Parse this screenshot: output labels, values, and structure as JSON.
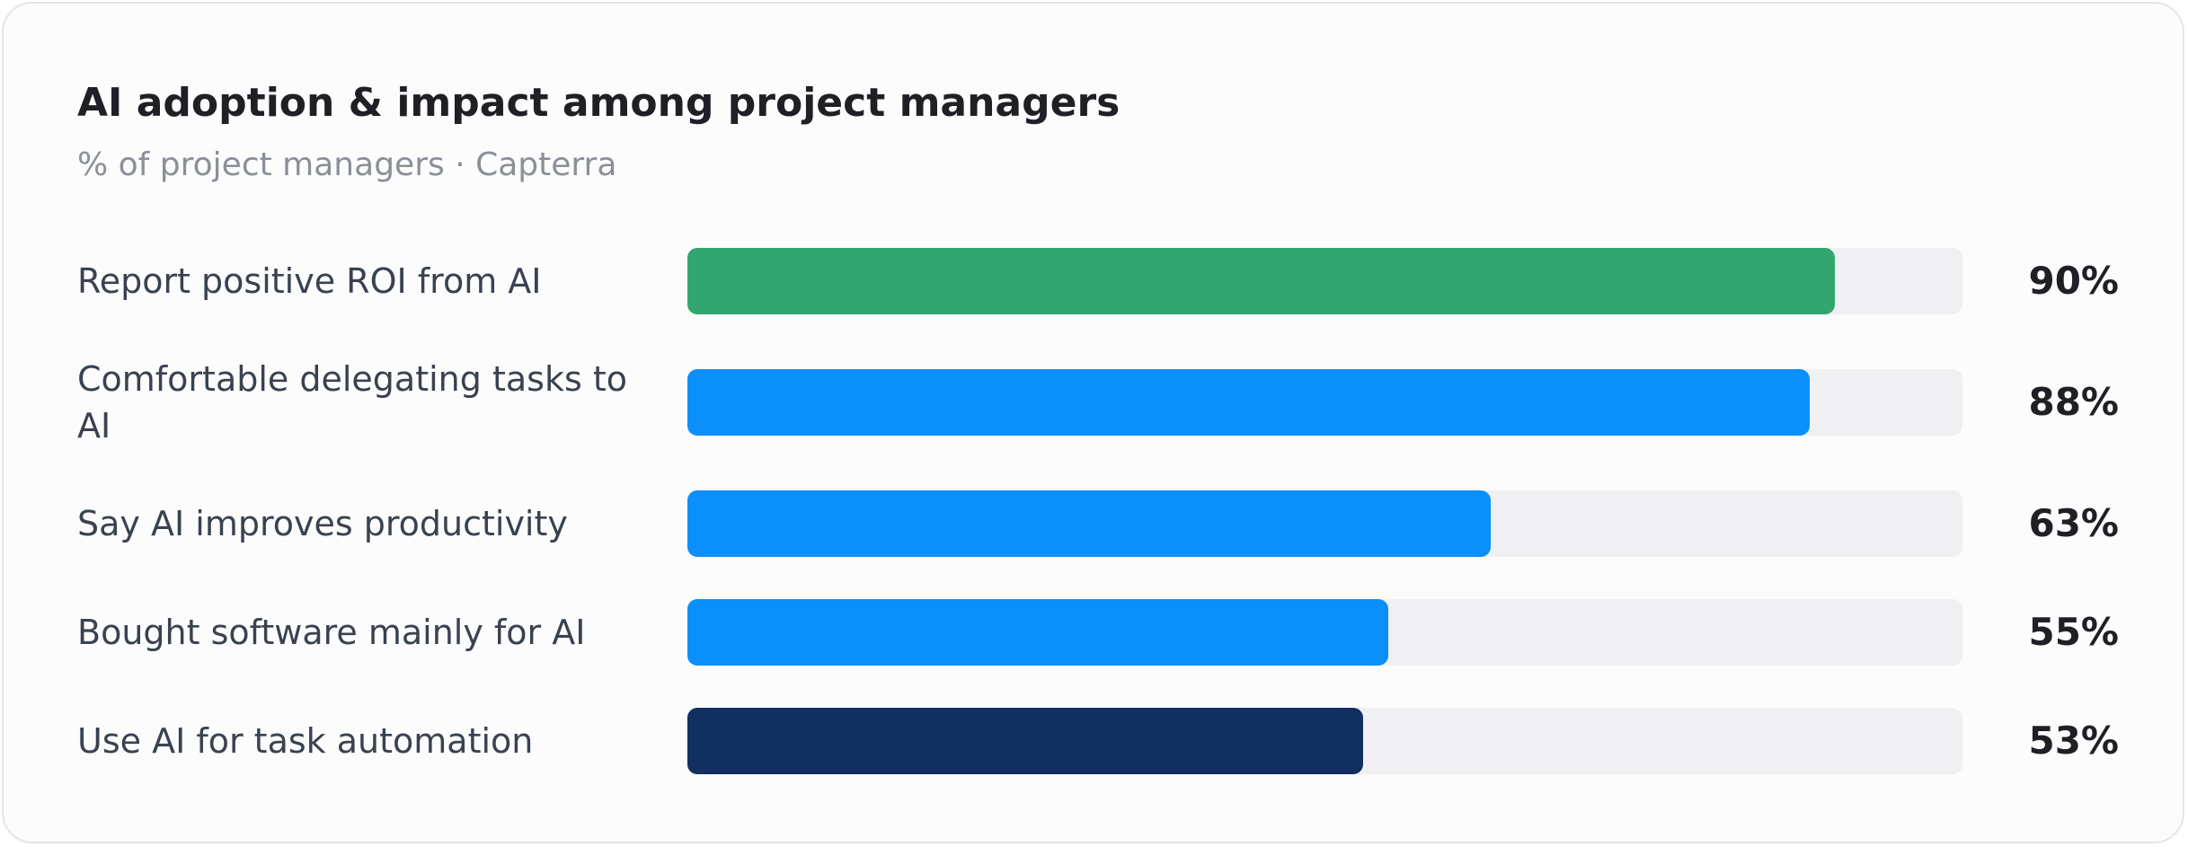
{
  "chart_data": {
    "type": "bar",
    "orientation": "horizontal",
    "title": "AI adoption & impact among project managers",
    "subtitle": "% of project managers · Capterra",
    "xlim": [
      0,
      100
    ],
    "categories": [
      "Report positive ROI from AI",
      "Comfortable delegating tasks to AI",
      "Say AI improves productivity",
      "Bought software mainly for AI",
      "Use AI for task automation"
    ],
    "values": [
      90,
      88,
      63,
      55,
      53
    ],
    "value_labels": [
      "90%",
      "88%",
      "63%",
      "55%",
      "53%"
    ],
    "bar_colors": [
      "#32a66e",
      "#0a8ffb",
      "#0a8ffb",
      "#0a8ffb",
      "#122f61"
    ],
    "track_color": "#f0f0f2",
    "grid": false,
    "legend": "none"
  }
}
